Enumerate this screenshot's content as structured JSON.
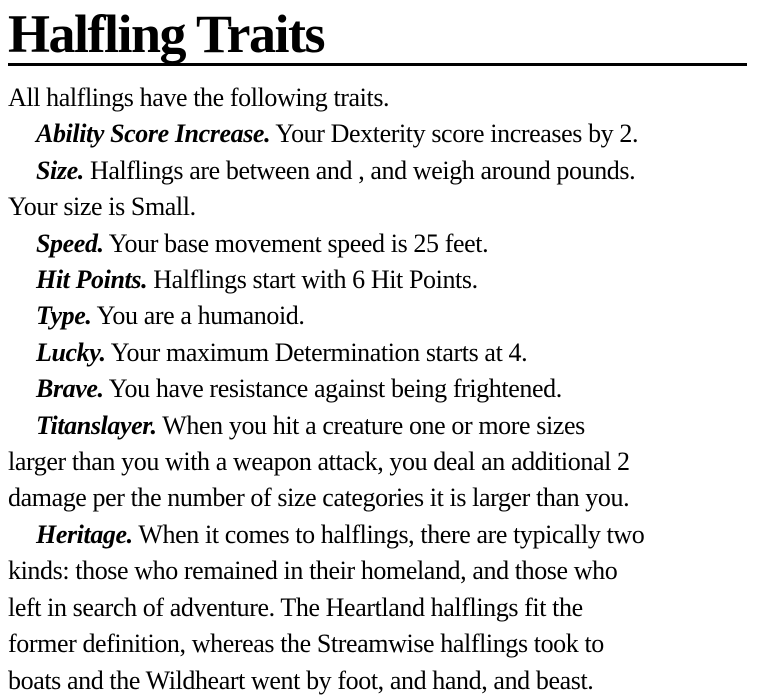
{
  "document": {
    "title": "Halfling Traits",
    "intro": "All halflings have the following traits.",
    "traits": [
      {
        "name": "Ability Score Increase.",
        "lines": [
          "Your Dexterity score increases by 2."
        ]
      },
      {
        "name": "Size.",
        "lines": [
          "Halflings are between and , and weigh around pounds.",
          "Your size is Small."
        ]
      },
      {
        "name": "Speed.",
        "lines": [
          "Your base movement speed is 25 feet."
        ]
      },
      {
        "name": "Hit Points.",
        "lines": [
          "Halflings start with 6 Hit Points."
        ]
      },
      {
        "name": "Type.",
        "lines": [
          "You are a humanoid."
        ]
      },
      {
        "name": "Lucky.",
        "lines": [
          "Your maximum Determination starts at 4."
        ]
      },
      {
        "name": "Brave.",
        "lines": [
          "You have resistance against being frightened."
        ]
      },
      {
        "name": "Titanslayer.",
        "lines": [
          "When you hit a creature one or more sizes",
          "larger than you with a weapon attack, you deal an additional 2",
          "damage per the number of size categories it is larger than you."
        ]
      },
      {
        "name": "Heritage.",
        "lines": [
          "When it comes to halflings, there are typically two",
          "kinds: those who remained in their homeland, and those who",
          "left in search of adventure. The Heartland halflings fit the",
          "former definition, whereas the Streamwise halflings took to",
          "boats and the Wildheart went by foot, and hand, and beast."
        ]
      }
    ],
    "colors": {
      "text": "#000000",
      "background": "#ffffff",
      "rule": "#000000"
    }
  }
}
